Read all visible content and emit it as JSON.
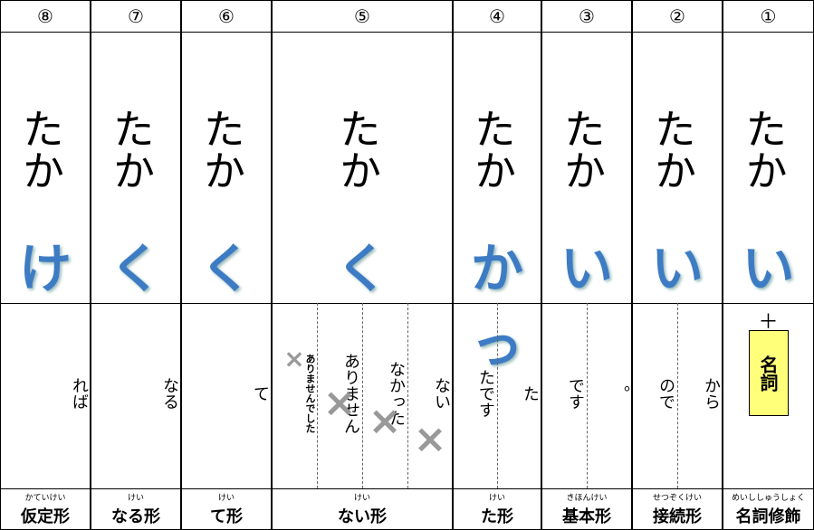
{
  "columns": [
    {
      "number": "①",
      "stem": "たか",
      "ending": "い",
      "forms": [
        "＋"
      ],
      "note": "名詞",
      "reading": "めいししゅうしょく",
      "name": "名詞修飾"
    },
    {
      "number": "②",
      "stem": "たか",
      "ending": "い",
      "forms": [
        "から",
        "ので"
      ],
      "reading": "せつぞくけい",
      "name": "接続形"
    },
    {
      "number": "③",
      "stem": "たか",
      "ending": "い",
      "forms": [
        "。",
        "です"
      ],
      "reading": "きほんけい",
      "name": "基本形"
    },
    {
      "number": "④",
      "stem": "たか",
      "ending": "かっ",
      "forms": [
        "た",
        "たです"
      ],
      "reading": "けい",
      "name": "た形"
    },
    {
      "number": "⑤",
      "stem": "たか",
      "ending": "く",
      "forms": [
        "ない",
        "なかった",
        "ありません",
        "ありませんでした"
      ],
      "reading": "けい",
      "name": "ない形"
    },
    {
      "number": "⑥",
      "stem": "たか",
      "ending": "く",
      "forms": [
        "て"
      ],
      "reading": "けい",
      "name": "て形"
    },
    {
      "number": "⑦",
      "stem": "たか",
      "ending": "く",
      "forms": [
        "なる"
      ],
      "reading": "けい",
      "name": "なる形"
    },
    {
      "number": "⑧",
      "stem": "たか",
      "ending": "け",
      "forms": [
        "れば"
      ],
      "reading": "かていけい",
      "name": "仮定形"
    }
  ]
}
